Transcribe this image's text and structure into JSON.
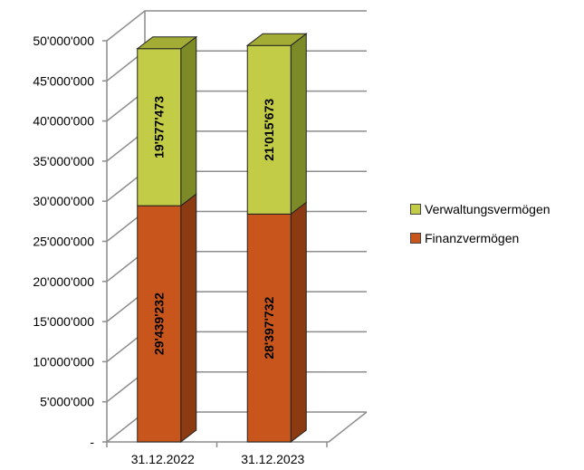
{
  "chart_data": {
    "type": "bar",
    "stacked": true,
    "three_d": true,
    "categories": [
      "31.12.2022",
      "31.12.2023"
    ],
    "series": [
      {
        "name": "Finanzvermögen",
        "values": [
          29439232,
          28397732
        ],
        "labels": [
          "29'439'232",
          "28'397'732"
        ],
        "color": "#c8561c",
        "side_color": "#8b3a12",
        "top_color": "#e07a3c"
      },
      {
        "name": "Verwaltungsvermögen",
        "values": [
          19577473,
          21015673
        ],
        "labels": [
          "19'577'473",
          "21'015'673"
        ],
        "color": "#c2cc47",
        "side_color": "#7c8a28",
        "top_color": "#a3ad35"
      }
    ],
    "yticks": [
      "-",
      "5'000'000",
      "10'000'000",
      "15'000'000",
      "20'000'000",
      "25'000'000",
      "30'000'000",
      "35'000'000",
      "40'000'000",
      "45'000'000",
      "50'000'000"
    ],
    "ylim": [
      0,
      50000000
    ],
    "grid": true,
    "legend_position": "right"
  }
}
